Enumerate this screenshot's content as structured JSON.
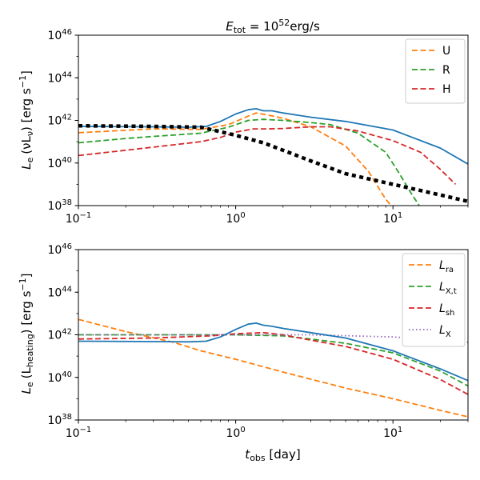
{
  "chart_data": [
    {
      "type": "line",
      "title": "E_tot = 10^52 erg/s",
      "title_parts": {
        "sym": "E",
        "sub": "tot",
        "eq": " = 10",
        "sup": "52",
        "unit": "erg/s"
      },
      "xlabel": "",
      "ylabel_parts": {
        "sym": "L",
        "sub": "e",
        "paren": "(νL",
        "paren_sub": "ν",
        "close": ")",
        "unit": " [erg s",
        "unit_sup": "−1",
        "unit_end": "]"
      },
      "xscale": "log",
      "yscale": "log",
      "xlim": [
        0.1,
        30
      ],
      "ylim": [
        1e+38,
        1e+46
      ],
      "x_ticks": [
        {
          "base": "10",
          "exp": "−1",
          "value": 0.1
        },
        {
          "base": "10",
          "exp": "0",
          "value": 1
        },
        {
          "base": "10",
          "exp": "1",
          "value": 10
        }
      ],
      "y_ticks": [
        {
          "base": "10",
          "exp": "38",
          "value": 38
        },
        {
          "base": "10",
          "exp": "40",
          "value": 40
        },
        {
          "base": "10",
          "exp": "42",
          "value": 42
        },
        {
          "base": "10",
          "exp": "44",
          "value": 44
        },
        {
          "base": "10",
          "exp": "46",
          "value": 46
        }
      ],
      "legend_position": "top-right",
      "series": [
        {
          "name": "U",
          "legend": "U",
          "color": "#ff7f0e",
          "style": "dashed",
          "log_x": [
            0.1,
            0.3,
            0.6,
            0.9,
            1.2,
            1.35,
            1.6,
            2.0,
            3.0,
            5.0,
            7.0,
            8.0,
            9.0,
            10.0
          ],
          "log_y": [
            41.42,
            41.6,
            41.58,
            41.8,
            42.2,
            42.35,
            42.25,
            42.1,
            41.7,
            40.8,
            39.6,
            38.9,
            38.3,
            37.9
          ]
        },
        {
          "name": "R",
          "legend": "R",
          "color": "#2ca02c",
          "style": "dashed",
          "log_x": [
            0.1,
            0.2,
            0.3,
            0.6,
            0.9,
            1.2,
            1.5,
            2.0,
            3.0,
            4.0,
            6.0,
            9.0,
            11.0,
            13.0,
            15.0
          ],
          "log_y": [
            40.95,
            41.15,
            41.25,
            41.4,
            41.68,
            42.0,
            42.05,
            42.0,
            41.9,
            41.8,
            41.4,
            40.5,
            39.5,
            38.6,
            37.9
          ]
        },
        {
          "name": "H",
          "legend": "H",
          "color": "#d62728",
          "style": "dashed",
          "log_x": [
            0.1,
            0.2,
            0.4,
            0.6,
            0.8,
            1.0,
            1.3,
            1.6,
            2.0,
            3.0,
            4.0,
            6.0,
            10.0,
            15.0,
            20.0,
            25.0
          ],
          "log_y": [
            40.35,
            40.6,
            40.85,
            41.0,
            41.2,
            41.45,
            41.6,
            41.6,
            41.62,
            41.7,
            41.7,
            41.5,
            41.05,
            40.5,
            39.7,
            39.0
          ]
        },
        {
          "name": "total",
          "color": "#1f77b4",
          "style": "solid",
          "log_x": [
            0.1,
            0.3,
            0.5,
            0.65,
            0.8,
            1.0,
            1.2,
            1.35,
            1.5,
            1.7,
            2.0,
            3.0,
            5.0,
            10.0,
            20.0,
            30.0
          ],
          "log_y": [
            41.72,
            41.7,
            41.68,
            41.72,
            41.95,
            42.3,
            42.5,
            42.55,
            42.45,
            42.45,
            42.35,
            42.15,
            41.95,
            41.55,
            40.7,
            39.95
          ]
        },
        {
          "name": "black-dotted",
          "color": "#000000",
          "style": "dotted",
          "log_x": [
            0.1,
            0.3,
            0.6,
            1.0,
            1.5,
            2.0,
            3.0,
            5.0,
            10.0,
            20.0,
            30.0
          ],
          "log_y": [
            41.75,
            41.72,
            41.68,
            41.3,
            40.95,
            40.6,
            40.1,
            39.5,
            39.0,
            38.5,
            38.2
          ]
        }
      ]
    },
    {
      "type": "line",
      "xlabel_parts": {
        "sym": "t",
        "sub": "obs",
        "unit": " [day]"
      },
      "ylabel_parts": {
        "sym": "L",
        "sub": "e",
        "paren": "(L",
        "paren_sub": "heating",
        "close": ")",
        "unit": " [erg s",
        "unit_sup": "−1",
        "unit_end": "]"
      },
      "xscale": "log",
      "yscale": "log",
      "xlim": [
        0.1,
        30
      ],
      "ylim": [
        1e+38,
        1e+46
      ],
      "x_ticks": [
        {
          "base": "10",
          "exp": "−1",
          "value": 0.1
        },
        {
          "base": "10",
          "exp": "0",
          "value": 1
        },
        {
          "base": "10",
          "exp": "1",
          "value": 10
        }
      ],
      "y_ticks": [
        {
          "base": "10",
          "exp": "38",
          "value": 38
        },
        {
          "base": "10",
          "exp": "40",
          "value": 40
        },
        {
          "base": "10",
          "exp": "42",
          "value": 42
        },
        {
          "base": "10",
          "exp": "44",
          "value": 44
        },
        {
          "base": "10",
          "exp": "46",
          "value": 46
        }
      ],
      "legend_position": "top-right",
      "series": [
        {
          "name": "L_ra",
          "legend_sym": "L",
          "legend_sub": "ra",
          "color": "#ff7f0e",
          "style": "dashed",
          "log_x": [
            0.1,
            0.2,
            0.4,
            0.6,
            1.0,
            2.0,
            5.0,
            10.0,
            20.0,
            30.0
          ],
          "log_y": [
            42.72,
            42.15,
            41.65,
            41.25,
            40.85,
            40.25,
            39.5,
            39.0,
            38.45,
            38.15
          ]
        },
        {
          "name": "L_X,t",
          "legend_sym": "L",
          "legend_sub": "X,t",
          "color": "#2ca02c",
          "style": "dashed",
          "log_x": [
            0.1,
            0.5,
            1.0,
            2.0,
            3.0,
            5.0,
            10.0,
            20.0,
            30.0
          ],
          "log_y": [
            42.0,
            42.0,
            42.0,
            41.95,
            41.8,
            41.6,
            41.15,
            40.3,
            39.6
          ]
        },
        {
          "name": "L_sh",
          "legend_sym": "L",
          "legend_sub": "sh",
          "color": "#d62728",
          "style": "dashed",
          "log_x": [
            0.1,
            0.3,
            0.7,
            1.0,
            1.5,
            2.0,
            3.0,
            5.0,
            10.0,
            20.0,
            30.0
          ],
          "log_y": [
            41.8,
            41.85,
            41.95,
            42.05,
            42.1,
            42.0,
            41.75,
            41.45,
            40.85,
            39.9,
            39.2
          ]
        },
        {
          "name": "L_X",
          "legend_sym": "L",
          "legend_sub": "X",
          "color": "#9467bd",
          "style": "dotted",
          "log_x": [
            0.1,
            0.5,
            1.0,
            3.0,
            10.0,
            30.0
          ],
          "log_y": [
            42.0,
            42.0,
            42.0,
            42.0,
            41.9,
            41.65
          ]
        },
        {
          "name": "total",
          "color": "#1f77b4",
          "style": "solid",
          "log_x": [
            0.1,
            0.3,
            0.5,
            0.65,
            0.8,
            1.0,
            1.2,
            1.35,
            1.5,
            1.7,
            2.0,
            3.0,
            5.0,
            10.0,
            20.0,
            30.0
          ],
          "log_y": [
            41.7,
            41.68,
            41.67,
            41.7,
            41.9,
            42.25,
            42.5,
            42.55,
            42.45,
            42.4,
            42.3,
            42.1,
            41.85,
            41.25,
            40.4,
            39.85
          ]
        }
      ]
    }
  ]
}
